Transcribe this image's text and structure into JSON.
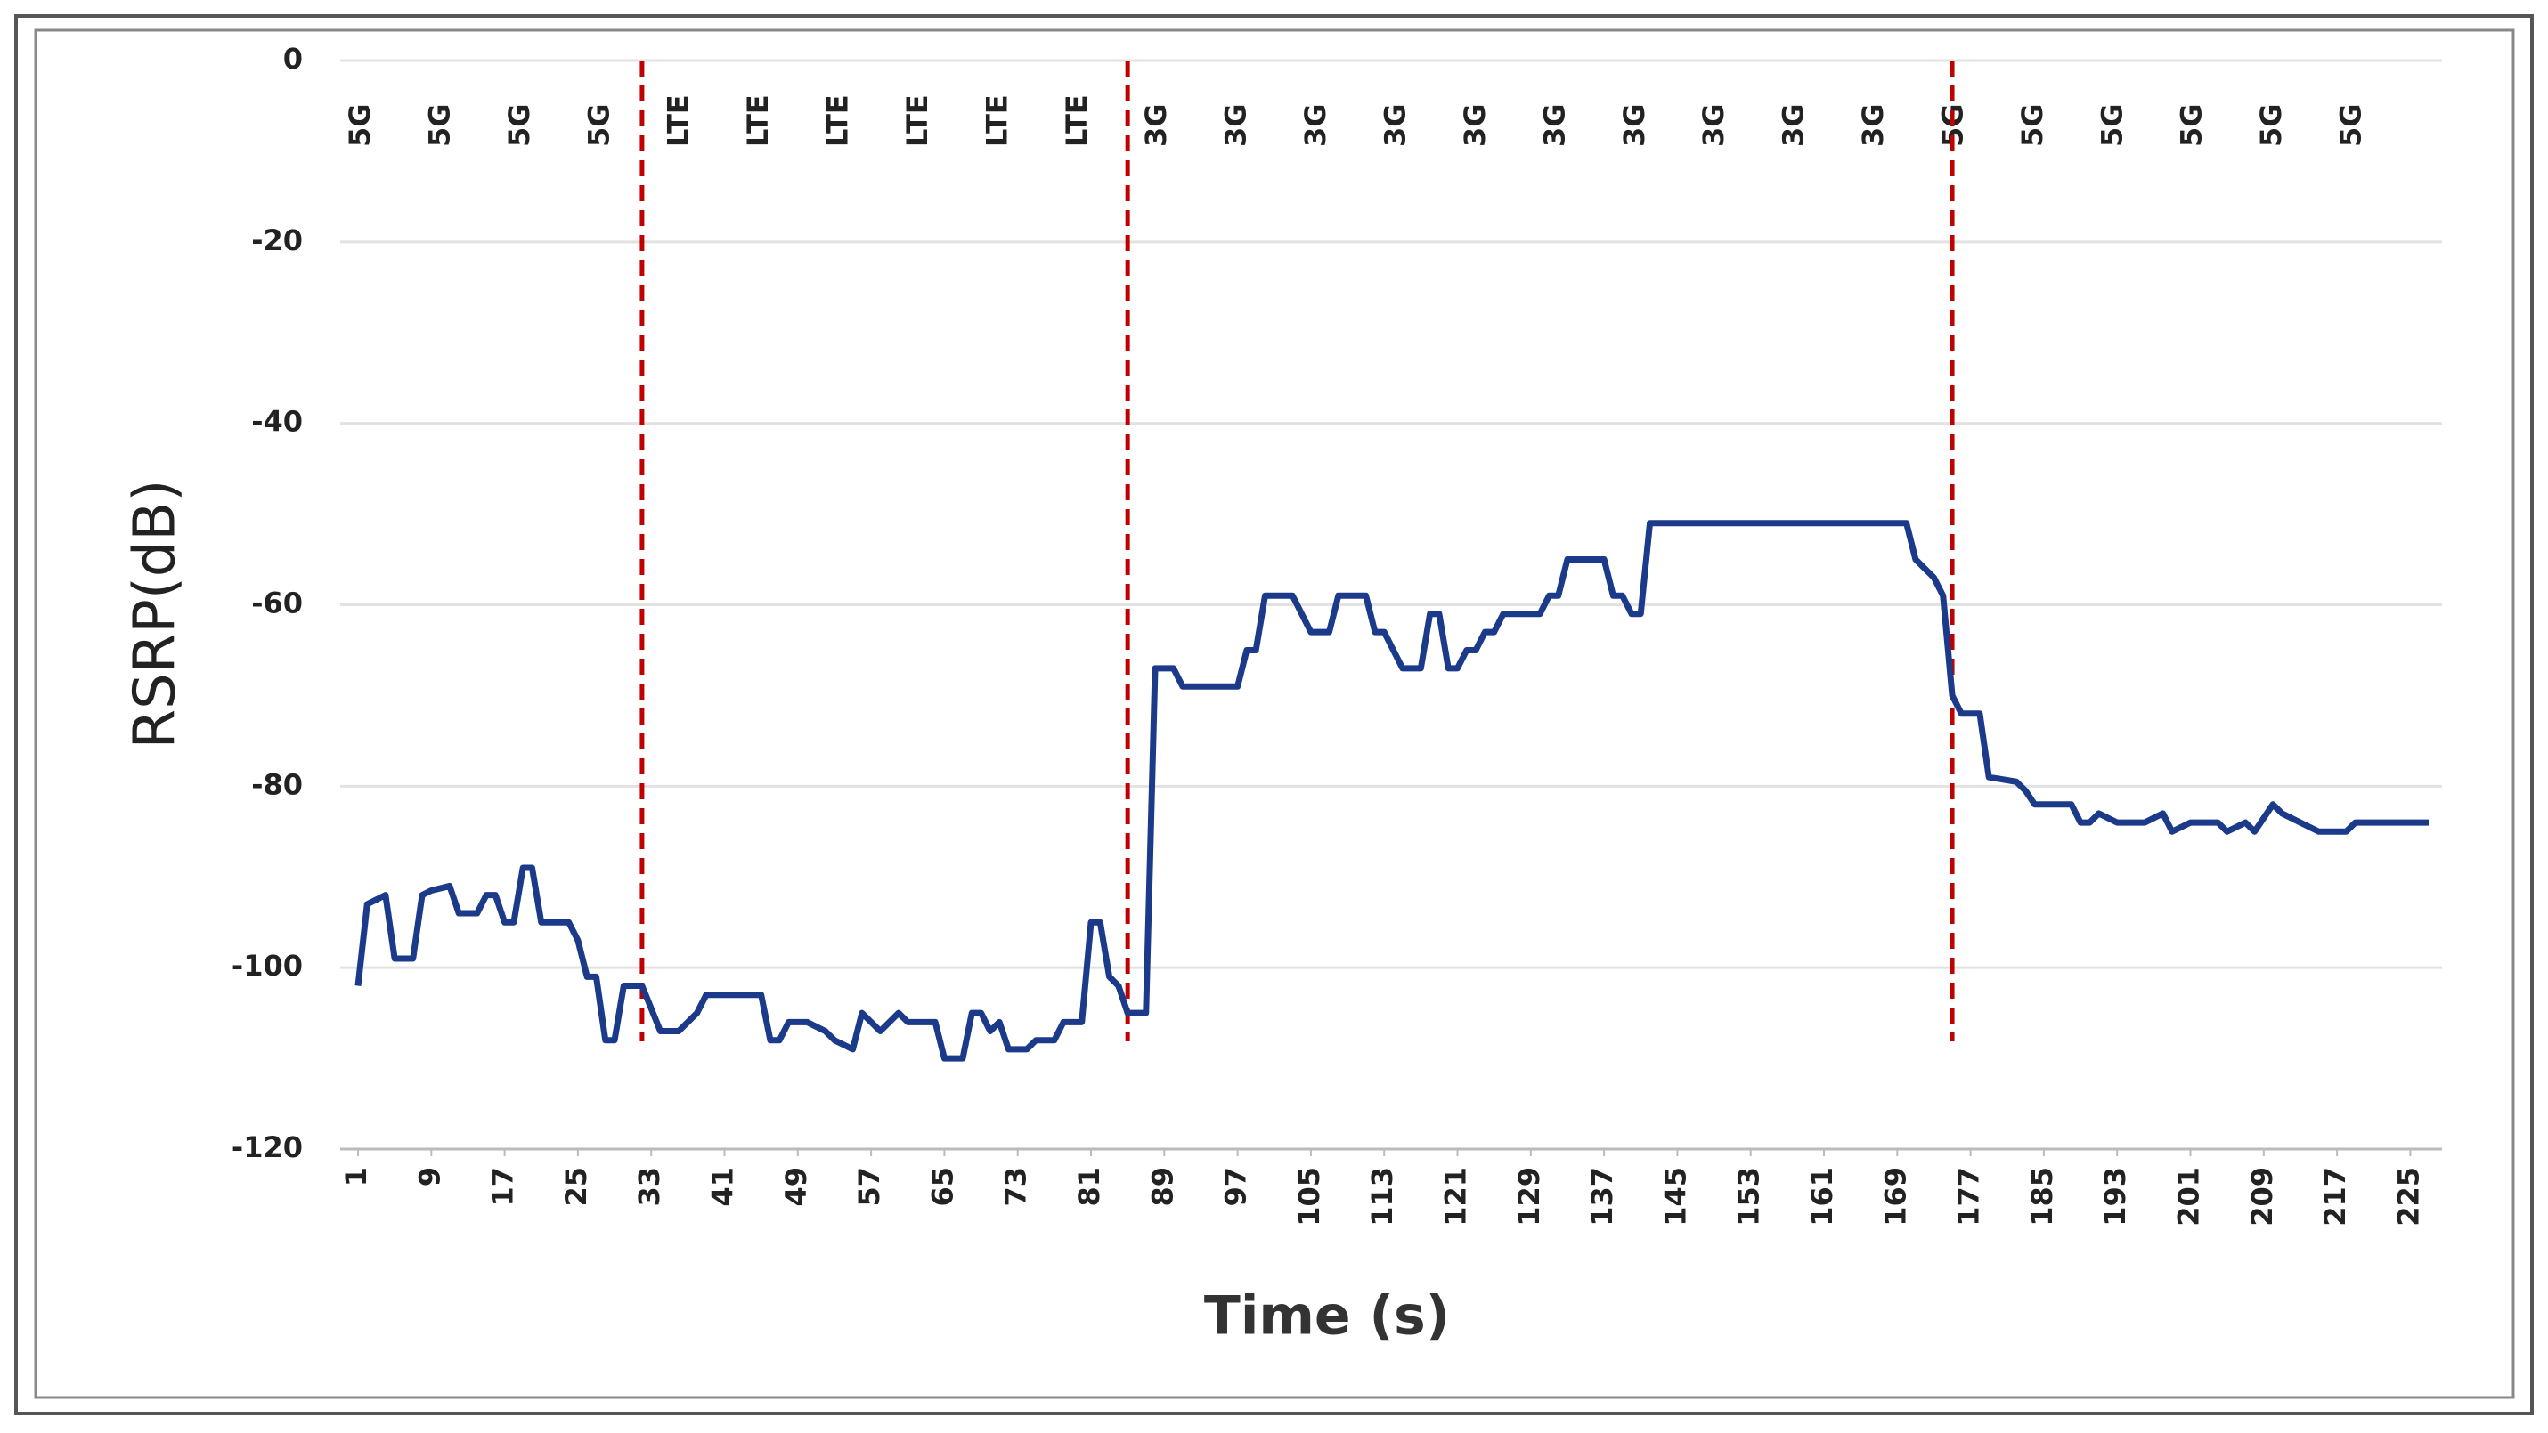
{
  "chart_data": {
    "type": "line",
    "xlabel": "Time (s)",
    "ylabel": "RSRP(dB)",
    "top_labels": [
      "5G",
      "5G",
      "5G",
      "5G",
      "LTE",
      "LTE",
      "LTE",
      "LTE",
      "LTE",
      "LTE",
      "3G",
      "3G",
      "3G",
      "3G",
      "3G",
      "3G",
      "3G",
      "3G",
      "3G",
      "3G",
      "5G",
      "5G",
      "5G",
      "5G",
      "5G",
      "5G"
    ],
    "handover_color": "#c00000",
    "handovers": [
      32,
      85,
      175
    ],
    "xlim": [
      1,
      227
    ],
    "xticks": [
      1,
      9,
      17,
      25,
      33,
      41,
      49,
      57,
      65,
      73,
      81,
      89,
      97,
      105,
      113,
      121,
      129,
      137,
      145,
      153,
      161,
      169,
      177,
      185,
      193,
      201,
      209,
      217,
      225
    ],
    "ylim": [
      -120,
      0
    ],
    "yticks": [
      0,
      -20,
      -40,
      -60,
      -80,
      -100,
      -120
    ],
    "grid": true,
    "series": [
      {
        "color": "#1b3a8a",
        "x": [
          1,
          2,
          4,
          5,
          7,
          8,
          9,
          11,
          12,
          14,
          15,
          16,
          17,
          18,
          19,
          20,
          21,
          24,
          25,
          26,
          27,
          28,
          29,
          30,
          32,
          34,
          36,
          38,
          39,
          45,
          46,
          47,
          48,
          50,
          52,
          53,
          55,
          56,
          58,
          60,
          61,
          64,
          65,
          67,
          68,
          69,
          70,
          71,
          72,
          74,
          75,
          77,
          78,
          80,
          81,
          82,
          83,
          84,
          85,
          87,
          88,
          90,
          91,
          97,
          98,
          99,
          100,
          103,
          104,
          105,
          107,
          108,
          111,
          112,
          113,
          114,
          115,
          117,
          118,
          119,
          120,
          121,
          122,
          123,
          124,
          125,
          126,
          130,
          131,
          132,
          133,
          137,
          138,
          139,
          140,
          141,
          142,
          170,
          171,
          173,
          174,
          175,
          176,
          178,
          179,
          182,
          183,
          184,
          188,
          189,
          190,
          191,
          193,
          196,
          198,
          199,
          201,
          204,
          205,
          207,
          208,
          210,
          211,
          213,
          215,
          218,
          219,
          227
        ],
        "values": [
          -102,
          -93,
          -92,
          -99,
          -99,
          -92,
          -91.5,
          -91,
          -94,
          -94,
          -92,
          -92,
          -95,
          -95,
          -89,
          -89,
          -95,
          -95,
          -97,
          -101,
          -101,
          -108,
          -108,
          -102,
          -102,
          -107,
          -107,
          -105,
          -103,
          -103,
          -108,
          -108,
          -106,
          -106,
          -107,
          -108,
          -109,
          -105,
          -107,
          -105,
          -106,
          -106,
          -110,
          -110,
          -105,
          -105,
          -107,
          -106,
          -109,
          -109,
          -108,
          -108,
          -106,
          -106,
          -95,
          -95,
          -101,
          -102,
          -105,
          -105,
          -67,
          -67,
          -69,
          -69,
          -65,
          -65,
          -59,
          -59,
          -61,
          -63,
          -63,
          -59,
          -59,
          -63,
          -63,
          -65,
          -67,
          -67,
          -61,
          -61,
          -67,
          -67,
          -65,
          -65,
          -63,
          -63,
          -61,
          -61,
          -59,
          -59,
          -55,
          -55,
          -59,
          -59,
          -61,
          -61,
          -51,
          -51,
          -55,
          -57,
          -59,
          -70,
          -72,
          -72,
          -79,
          -79.5,
          -80.5,
          -82,
          -82,
          -84,
          -84,
          -83,
          -84,
          -84,
          -83,
          -85,
          -84,
          -84,
          -85,
          -84,
          -85,
          -82,
          -83,
          -84,
          -85,
          -85,
          -84,
          -84
        ]
      }
    ]
  }
}
